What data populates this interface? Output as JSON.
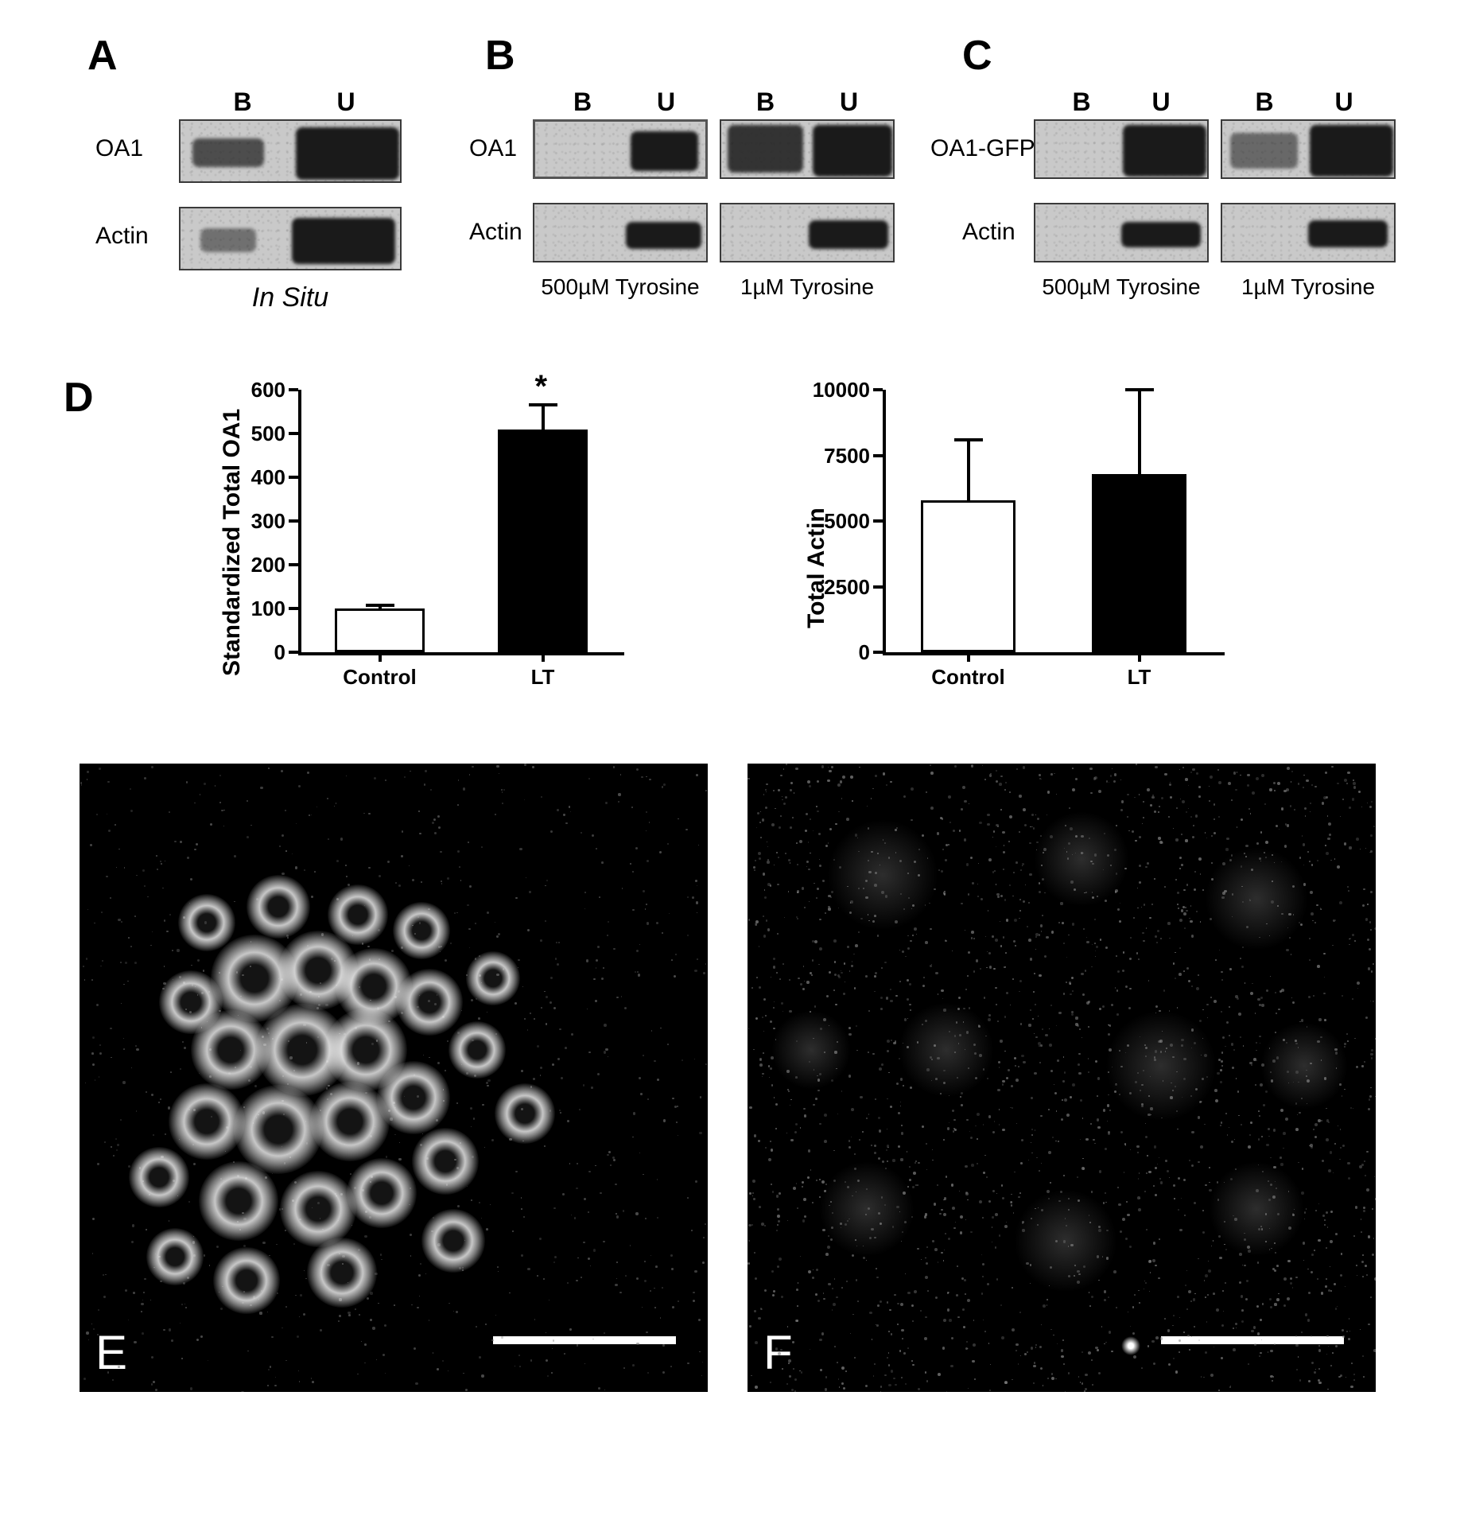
{
  "panelLetters": {
    "A": "A",
    "B": "B",
    "C": "C",
    "D": "D",
    "E": "E",
    "F": "F"
  },
  "laneLabels": {
    "B": "B",
    "U": "U"
  },
  "rowLabels": {
    "oa1": "OA1",
    "actin": "Actin",
    "oa1gfp": "OA1-GFP"
  },
  "conditions": {
    "insitu": "In Situ",
    "hiTyr": "500µM Tyrosine",
    "loTyr": "1µM  Tyrosine",
    "hiTyrC": "500µM Tyrosine",
    "loTyrC": "1µM Tyrosine"
  },
  "chart1": {
    "ylabel": "Standardized Total OA1",
    "categories": [
      "Control",
      "LT"
    ],
    "values": [
      100,
      510
    ],
    "errors": [
      8,
      55
    ],
    "bar_fill": [
      "white",
      "black"
    ],
    "ylim": [
      0,
      600
    ],
    "ytick_step": 100,
    "star_on": 1,
    "background": "#ffffff"
  },
  "chart2": {
    "ylabel": "Total Actin",
    "categories": [
      "Control",
      "LT"
    ],
    "values": [
      5800,
      6800
    ],
    "errors": [
      2300,
      3200
    ],
    "bar_fill": [
      "white",
      "black"
    ],
    "ylim": [
      0,
      10000
    ],
    "ytick_step": 2500,
    "background": "#ffffff"
  },
  "colors": {
    "axis": "#000000",
    "open_bar_border": "#000000",
    "solid_bar": "#000000",
    "background": "#ffffff",
    "micro_bg": "#000000",
    "scalebar": "#ffffff"
  },
  "fonts": {
    "panel_label_pt": 52,
    "lane_label_pt": 32,
    "row_label_pt": 30,
    "axis_label_pt": 30,
    "tick_label_pt": 26
  },
  "starGlyph": "*"
}
